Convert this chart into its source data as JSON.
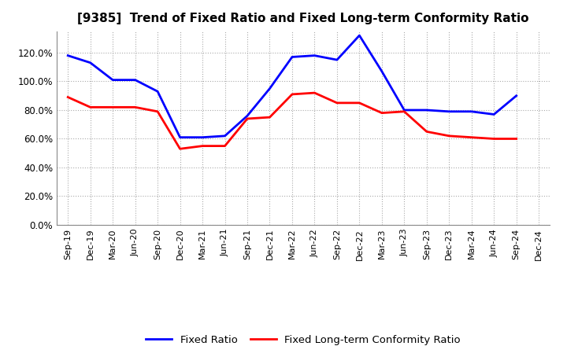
{
  "title": "[9385]  Trend of Fixed Ratio and Fixed Long-term Conformity Ratio",
  "x_labels": [
    "Sep-19",
    "Dec-19",
    "Mar-20",
    "Jun-20",
    "Sep-20",
    "Dec-20",
    "Mar-21",
    "Jun-21",
    "Sep-21",
    "Dec-21",
    "Mar-22",
    "Jun-22",
    "Sep-22",
    "Dec-22",
    "Mar-23",
    "Jun-23",
    "Sep-23",
    "Dec-23",
    "Mar-24",
    "Jun-24",
    "Sep-24",
    "Dec-24"
  ],
  "fixed_ratio": [
    118,
    113,
    101,
    101,
    93,
    61,
    61,
    62,
    76,
    95,
    117,
    118,
    115,
    132,
    107,
    80,
    80,
    79,
    79,
    77,
    90,
    null
  ],
  "fixed_lt_ratio": [
    89,
    82,
    82,
    82,
    79,
    53,
    55,
    55,
    74,
    75,
    91,
    92,
    85,
    85,
    78,
    79,
    65,
    62,
    61,
    60,
    60,
    null
  ],
  "blue_color": "#0000FF",
  "red_color": "#FF0000",
  "ylim": [
    0,
    135
  ],
  "yticks": [
    0,
    20,
    40,
    60,
    80,
    100,
    120
  ],
  "legend_labels": [
    "Fixed Ratio",
    "Fixed Long-term Conformity Ratio"
  ],
  "bg_color": "#FFFFFF",
  "grid_color": "#AAAAAA"
}
